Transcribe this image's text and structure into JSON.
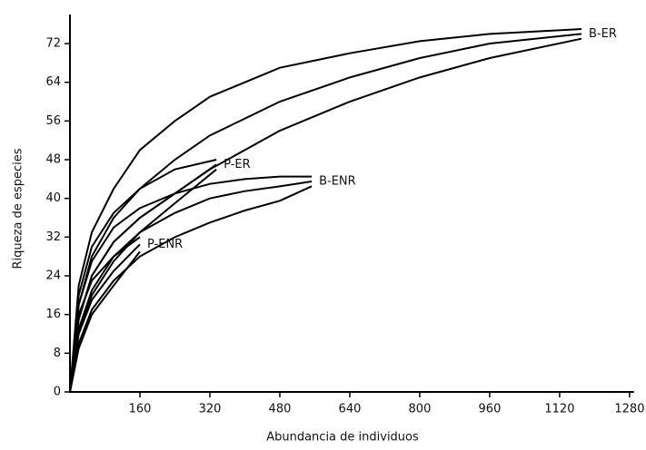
{
  "chart_data": {
    "type": "line",
    "x_label": "Abundancia de individuos",
    "y_label": "Riqueza de especies",
    "xlim": [
      0,
      1290
    ],
    "ylim": [
      0,
      78
    ],
    "xticks": [
      160,
      320,
      480,
      640,
      800,
      960,
      1120,
      1280
    ],
    "yticks": [
      0,
      8,
      16,
      24,
      32,
      40,
      48,
      56,
      64,
      72
    ],
    "color": "#000000",
    "series": [
      {
        "name": "B-ER",
        "x": [
          0,
          20,
          50,
          100,
          160,
          240,
          320,
          480,
          640,
          800,
          960,
          1170
        ],
        "lines": [
          [
            0,
            22,
            33,
            42,
            50,
            56,
            61,
            67,
            70,
            72.5,
            74,
            75
          ],
          [
            0,
            18,
            28,
            36,
            42,
            48,
            53,
            60,
            65,
            69,
            72,
            74
          ],
          [
            0,
            15,
            24,
            31,
            36,
            41,
            46,
            54,
            60,
            65,
            69,
            73
          ]
        ]
      },
      {
        "name": "P-ER",
        "x": [
          0,
          20,
          50,
          100,
          160,
          240,
          335
        ],
        "lines": [
          [
            0,
            20,
            30,
            37,
            42,
            46,
            48
          ],
          [
            0,
            15,
            24,
            31,
            36,
            41,
            47
          ],
          [
            0,
            12,
            20,
            27,
            33,
            39,
            46
          ]
        ]
      },
      {
        "name": "B-ENR",
        "x": [
          0,
          20,
          50,
          100,
          160,
          240,
          320,
          400,
          480,
          553
        ],
        "lines": [
          [
            0,
            18,
            27,
            34,
            38,
            41,
            43,
            44,
            44.5,
            44.5
          ],
          [
            0,
            13,
            21,
            28,
            33,
            37,
            40,
            41.5,
            42.5,
            43.5
          ],
          [
            0,
            10,
            17,
            23,
            28,
            32,
            35,
            37.5,
            39.5,
            42.5
          ]
        ]
      },
      {
        "name": "P-ENR",
        "x": [
          0,
          20,
          50,
          100,
          160
        ],
        "lines": [
          [
            0,
            16,
            23,
            28,
            32
          ],
          [
            0,
            12,
            19,
            25,
            30.5
          ],
          [
            0,
            9,
            16,
            22,
            29
          ]
        ]
      }
    ]
  }
}
